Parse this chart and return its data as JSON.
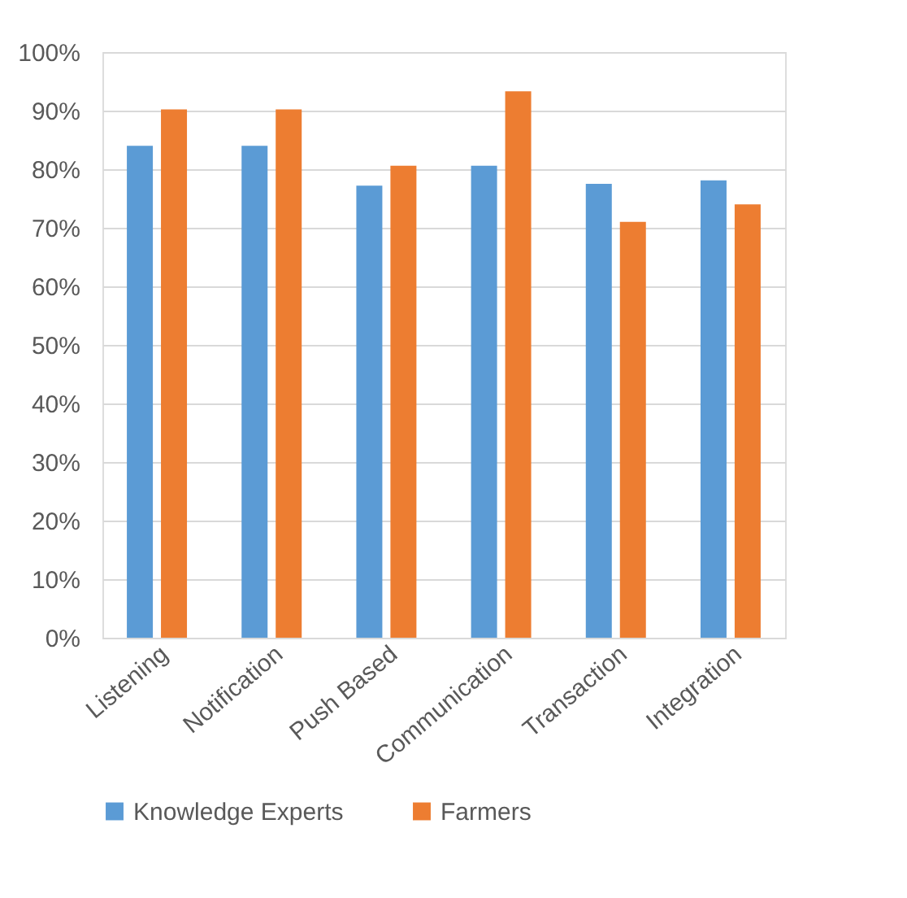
{
  "chart_data": {
    "type": "bar",
    "categories": [
      "Listening",
      "Notification",
      "Push Based",
      "Communication",
      "Transaction",
      "Integration"
    ],
    "series": [
      {
        "name": "Knowledge Experts",
        "color": "#5b9bd5",
        "values": [
          84.0,
          84.0,
          77.2,
          80.6,
          77.5,
          78.1
        ]
      },
      {
        "name": "Farmers",
        "color": "#ed7d31",
        "values": [
          90.2,
          90.2,
          80.6,
          93.3,
          71.0,
          74.0
        ]
      }
    ],
    "ylim": [
      0,
      100
    ],
    "yticks": [
      {
        "value": 0,
        "label": "0%"
      },
      {
        "value": 10,
        "label": "10%"
      },
      {
        "value": 20,
        "label": "20%"
      },
      {
        "value": 30,
        "label": "30%"
      },
      {
        "value": 40,
        "label": "40%"
      },
      {
        "value": 50,
        "label": "50%"
      },
      {
        "value": 60,
        "label": "60%"
      },
      {
        "value": 70,
        "label": "70%"
      },
      {
        "value": 80,
        "label": "80%"
      },
      {
        "value": 90,
        "label": "90%"
      },
      {
        "value": 100,
        "label": "100%"
      }
    ],
    "grid": "y",
    "legend": "bottom"
  }
}
